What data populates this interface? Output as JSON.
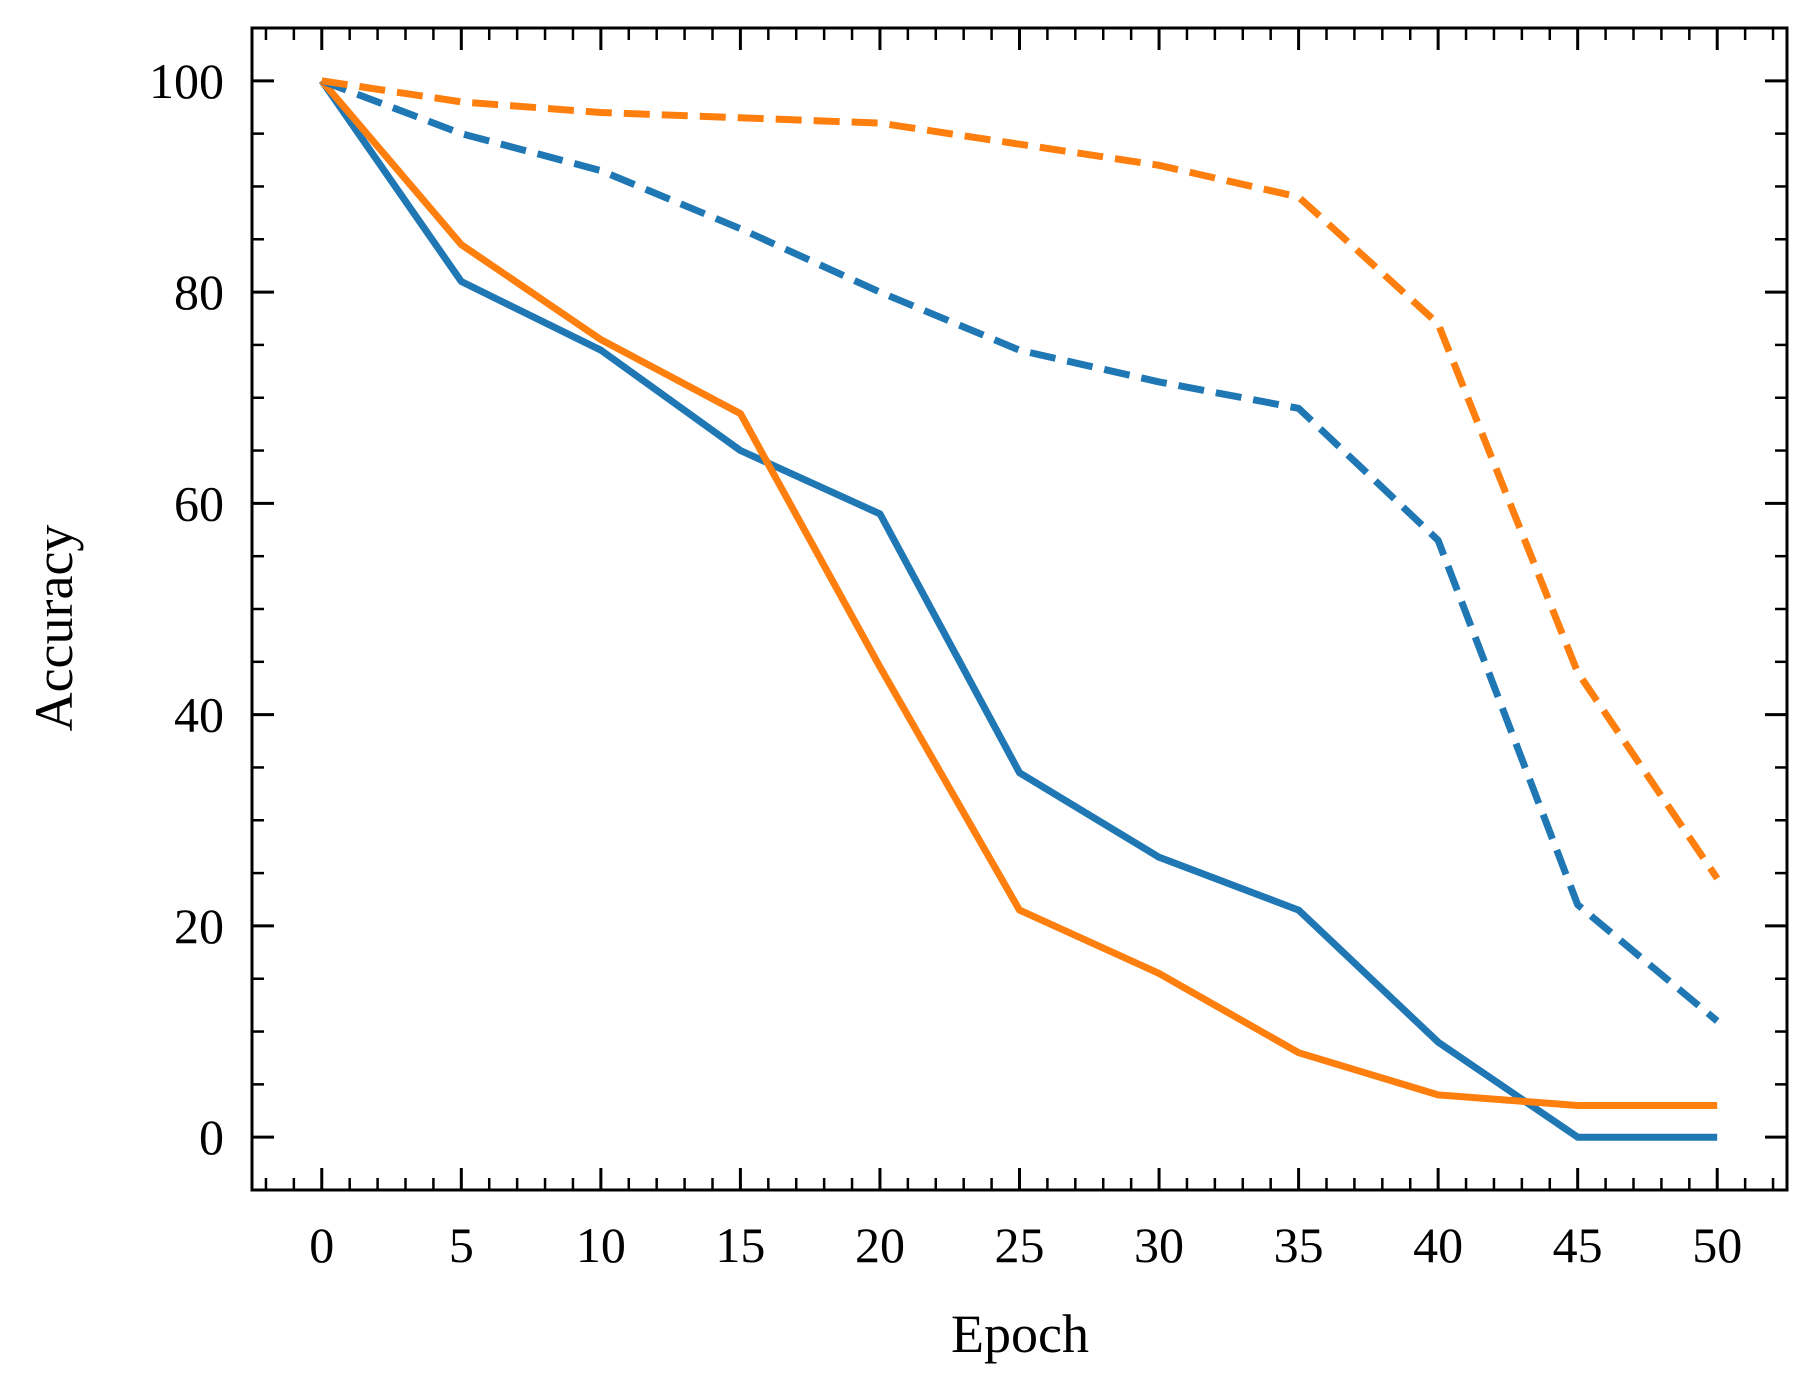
{
  "chart_data": {
    "type": "line",
    "title": "",
    "xlabel": "Epoch",
    "ylabel": "Accuracy",
    "xlim": [
      -2.5,
      52.5
    ],
    "ylim": [
      -5,
      105
    ],
    "x_ticks": [
      0,
      5,
      10,
      15,
      20,
      25,
      30,
      35,
      40,
      45,
      50
    ],
    "y_ticks": [
      0,
      20,
      40,
      60,
      80,
      100
    ],
    "x_minor_step": 1,
    "y_minor_step": 5,
    "grid": false,
    "legend": "none",
    "x": [
      0,
      5,
      10,
      15,
      20,
      25,
      30,
      35,
      40,
      45,
      50
    ],
    "series": [
      {
        "name": "blue-solid",
        "color": "#1f77b4",
        "dash": "solid",
        "values": [
          100,
          81,
          74.5,
          65,
          59,
          34.5,
          26.5,
          21.5,
          9,
          0,
          0
        ]
      },
      {
        "name": "orange-solid",
        "color": "#ff7f0e",
        "dash": "solid",
        "values": [
          100,
          84.5,
          75.5,
          68.5,
          44.5,
          21.5,
          15.5,
          8,
          4,
          3,
          3
        ]
      },
      {
        "name": "blue-dashed",
        "color": "#1f77b4",
        "dash": "dashed",
        "values": [
          100,
          95,
          91.5,
          86,
          80,
          74.5,
          71.5,
          69,
          56.5,
          22,
          11
        ]
      },
      {
        "name": "orange-dashed",
        "color": "#ff7f0e",
        "dash": "dashed",
        "values": [
          100,
          98,
          97,
          96.5,
          96,
          94,
          92,
          89,
          77,
          44,
          24.5
        ]
      }
    ]
  }
}
